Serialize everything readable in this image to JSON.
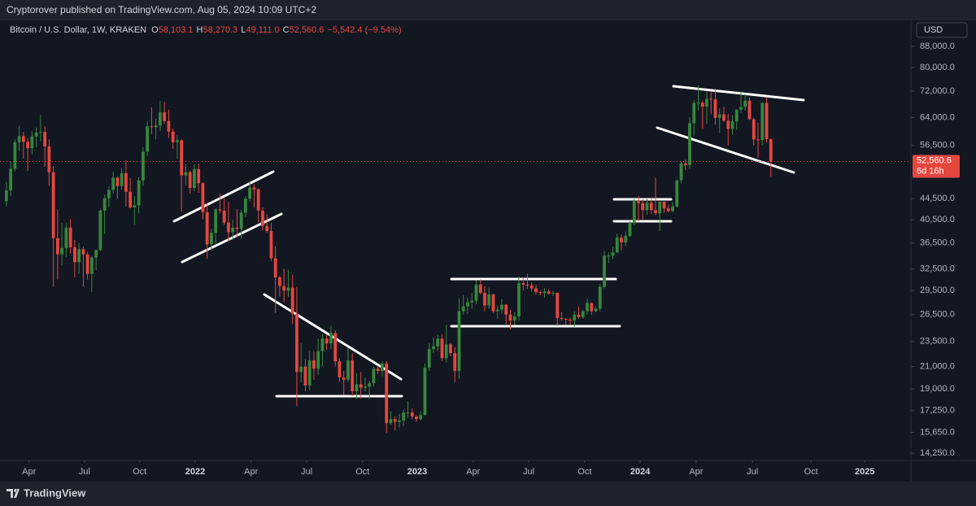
{
  "chart_data": {
    "type": "candlestick",
    "published": "Cryptorover published on TradingView.com, Aug 05, 2024 10:09 UTC+2",
    "title": "Bitcoin / U.S. Dollar, 1W, KRAKEN",
    "legend_fields": [
      {
        "key": "O",
        "text": "58,103.1"
      },
      {
        "key": "H",
        "text": "58,270.3"
      },
      {
        "key": "L",
        "text": "49,111.0"
      },
      {
        "key": "C",
        "text": "52,560.6"
      }
    ],
    "change_label": "−5,542.4 (−9.54%)",
    "currency": "USD",
    "last_price_label": "52,560.6",
    "countdown": "6d 16h",
    "brand": "TradingView",
    "up_color": "#36883c",
    "down_color": "#e5473f",
    "log_scale": true,
    "grid": false,
    "open": [
      44000,
      46200,
      50900,
      57300,
      58900,
      57400,
      55800,
      58800,
      59800,
      60000,
      56200,
      50100,
      37300,
      34700,
      35700,
      39100,
      35800,
      33500,
      35500,
      34700,
      31800,
      34200,
      35400,
      42200,
      44600,
      46300,
      48900,
      47100,
      49900,
      45900,
      42800,
      43200,
      48300,
      54900,
      61500,
      61300,
      61800,
      65500,
      63000,
      60100,
      57300,
      57800,
      49400,
      50100,
      46700,
      50800,
      47700,
      41900,
      36300,
      38200,
      42400,
      42200,
      40000,
      38300,
      39100,
      38900,
      41800,
      44500,
      46800,
      46400,
      42200,
      39400,
      38500,
      34100,
      31300,
      30100,
      29500,
      29900,
      26600,
      20500,
      21000,
      19300,
      21600,
      20800,
      22500,
      23800,
      23300,
      24400,
      21500,
      20000,
      19800,
      21600,
      18800,
      19400,
      19100,
      19200,
      19500,
      20800,
      20600,
      21300,
      16300,
      16600,
      16400,
      16500,
      17100,
      17100,
      16800,
      16600,
      16900,
      20900,
      22700,
      23000,
      23800,
      21800,
      23200,
      22300,
      20600,
      26900,
      27500,
      28000,
      28200,
      30300,
      29200,
      27600,
      29000,
      26900,
      27100,
      27700,
      26500,
      25800,
      26300,
      30500,
      30300,
      30200,
      29800,
      29300,
      29200,
      29400,
      29100,
      29200,
      26100,
      26000,
      25900,
      25800,
      26500,
      26200,
      26900,
      27900,
      26900,
      27200,
      30000,
      34500,
      34500,
      35000,
      37400,
      36600,
      37700,
      39900,
      44000,
      43600,
      42300,
      43700,
      42300,
      41700,
      43900,
      42600,
      42100,
      43000,
      48300,
      52100,
      51700,
      62400,
      68300,
      68400,
      67200,
      69600,
      69400,
      63900,
      64900,
      63100,
      60800,
      62900,
      66300,
      67100,
      69000,
      63500,
      58000,
      57900,
      68300,
      58103.1
    ],
    "high": [
      48000,
      52600,
      58000,
      61700,
      60000,
      58400,
      60200,
      61200,
      64800,
      61500,
      58000,
      51500,
      42400,
      40000,
      39900,
      40600,
      37000,
      36500,
      35900,
      35000,
      34500,
      35400,
      42400,
      45300,
      46900,
      50200,
      49200,
      51000,
      52900,
      48800,
      45000,
      49000,
      56000,
      62900,
      67000,
      63700,
      69000,
      68600,
      66300,
      60900,
      59100,
      58100,
      51900,
      50500,
      51900,
      52000,
      47900,
      43500,
      38900,
      42700,
      45500,
      44600,
      43900,
      40500,
      42500,
      42300,
      45000,
      48200,
      47500,
      46600,
      42800,
      41500,
      40000,
      36000,
      31500,
      32500,
      32400,
      31700,
      30000,
      23300,
      21700,
      22500,
      22500,
      23800,
      24300,
      24200,
      25200,
      24700,
      21800,
      20600,
      22800,
      22300,
      20400,
      20500,
      20000,
      19700,
      21000,
      21100,
      21500,
      21500,
      17200,
      16800,
      17000,
      17300,
      18000,
      17400,
      16900,
      17200,
      21300,
      23300,
      23900,
      24200,
      24300,
      25300,
      23300,
      22900,
      28500,
      28900,
      28600,
      29200,
      30900,
      31000,
      30100,
      29900,
      29100,
      27600,
      28400,
      27800,
      27100,
      26800,
      31400,
      31200,
      31800,
      30600,
      30300,
      29500,
      29800,
      29700,
      29500,
      29300,
      26800,
      26100,
      26200,
      26900,
      27500,
      27100,
      28500,
      28000,
      27500,
      30400,
      35200,
      35000,
      35900,
      38000,
      37900,
      38400,
      40300,
      44500,
      45000,
      44400,
      44500,
      44800,
      48900,
      43900,
      44000,
      43300,
      43800,
      48500,
      52600,
      53000,
      64000,
      69200,
      73800,
      68900,
      71800,
      71700,
      72800,
      66700,
      67200,
      65000,
      64700,
      66400,
      71900,
      71000,
      70000,
      64000,
      62500,
      68500,
      70000,
      58270.3
    ],
    "low": [
      43000,
      45000,
      50300,
      55000,
      53300,
      50400,
      54200,
      56000,
      57500,
      51300,
      47100,
      30000,
      31000,
      33000,
      34300,
      34800,
      31300,
      31800,
      30000,
      31000,
      29300,
      32300,
      35200,
      38000,
      42800,
      45500,
      44500,
      46300,
      43000,
      42600,
      39600,
      41700,
      47100,
      53900,
      59500,
      58000,
      60200,
      62300,
      58400,
      55600,
      53200,
      42000,
      47300,
      45500,
      46000,
      45700,
      40600,
      34000,
      35400,
      36300,
      41700,
      39600,
      36800,
      37000,
      37500,
      37200,
      41000,
      44000,
      42800,
      40000,
      38600,
      38200,
      33700,
      26700,
      28700,
      28000,
      28700,
      25400,
      17600,
      19600,
      18800,
      18900,
      19800,
      20200,
      21000,
      22600,
      22700,
      21000,
      19600,
      18500,
      19600,
      18400,
      18200,
      18200,
      18800,
      18200,
      19200,
      20300,
      20100,
      15600,
      16200,
      15800,
      16000,
      16100,
      16700,
      16600,
      16400,
      16500,
      16900,
      20600,
      22300,
      22500,
      21500,
      21400,
      22000,
      19600,
      19900,
      26500,
      26600,
      27200,
      27800,
      29000,
      26900,
      27200,
      26700,
      26000,
      26600,
      25400,
      24800,
      25300,
      25800,
      29500,
      29700,
      29400,
      29000,
      28900,
      28600,
      29000,
      28800,
      25200,
      25800,
      25300,
      25300,
      25100,
      26000,
      26000,
      26500,
      26500,
      26800,
      26900,
      29800,
      33400,
      34000,
      34900,
      35300,
      36000,
      37500,
      39500,
      40200,
      40600,
      41400,
      41500,
      41400,
      38500,
      41800,
      41900,
      41900,
      42800,
      47700,
      50600,
      50900,
      59000,
      66000,
      60800,
      62200,
      65000,
      62000,
      59700,
      62700,
      56500,
      59200,
      60600,
      65400,
      66000,
      63200,
      56500,
      53500,
      56600,
      57300,
      49111.0
    ],
    "close": [
      46200,
      50900,
      57300,
      58900,
      57400,
      55800,
      58800,
      59800,
      60000,
      56200,
      50100,
      37300,
      34700,
      35700,
      39100,
      35800,
      33500,
      35500,
      34700,
      31800,
      34200,
      35400,
      42200,
      44600,
      46300,
      48900,
      47100,
      49900,
      45900,
      42800,
      43200,
      48300,
      54900,
      61500,
      61300,
      61800,
      65500,
      63000,
      60100,
      57300,
      57800,
      49400,
      50100,
      46700,
      50800,
      47700,
      41900,
      36300,
      38200,
      42400,
      42200,
      40000,
      38300,
      39100,
      38900,
      41800,
      44500,
      46800,
      46400,
      42200,
      39400,
      38500,
      34100,
      31300,
      30100,
      29500,
      29900,
      26600,
      20500,
      21000,
      19300,
      21600,
      20800,
      22500,
      23800,
      23300,
      24400,
      21500,
      20000,
      19800,
      21600,
      18800,
      19400,
      19100,
      19200,
      19500,
      20800,
      20600,
      21300,
      16300,
      16600,
      16400,
      16500,
      17100,
      17100,
      16800,
      16600,
      16900,
      20900,
      22700,
      23000,
      23800,
      21800,
      23200,
      22300,
      20600,
      26900,
      27500,
      28000,
      28200,
      30300,
      29200,
      27600,
      29000,
      26900,
      27100,
      27700,
      26500,
      25800,
      26300,
      30500,
      30300,
      30200,
      29800,
      29300,
      29200,
      29400,
      29100,
      29200,
      26100,
      26000,
      25900,
      25800,
      26500,
      26200,
      26900,
      27900,
      26900,
      27200,
      30000,
      34500,
      34500,
      35000,
      37400,
      36600,
      37700,
      39900,
      44000,
      43600,
      42300,
      43700,
      42300,
      41700,
      43900,
      42600,
      42100,
      43000,
      48300,
      52100,
      51700,
      62400,
      68300,
      68400,
      67200,
      69600,
      69400,
      63900,
      64900,
      63100,
      60800,
      62900,
      66300,
      67100,
      69000,
      63500,
      58000,
      57900,
      68300,
      58103.0,
      52560.6
    ],
    "xlim": [
      -1.5,
      211.8
    ],
    "xticks": [
      {
        "value": 5.3,
        "label": "Apr"
      },
      {
        "value": 18.3,
        "label": "Jul"
      },
      {
        "value": 31.2,
        "label": "Oct"
      },
      {
        "value": 44.2,
        "label": "2022"
      },
      {
        "value": 57.3,
        "label": "Apr"
      },
      {
        "value": 70.3,
        "label": "Jul"
      },
      {
        "value": 83.4,
        "label": "Oct"
      },
      {
        "value": 96.2,
        "label": "2023"
      },
      {
        "value": 109.3,
        "label": "Apr"
      },
      {
        "value": 122.3,
        "label": "Jul"
      },
      {
        "value": 135.4,
        "label": "Oct"
      },
      {
        "value": 148.4,
        "label": "2024"
      },
      {
        "value": 161.5,
        "label": "Apr"
      },
      {
        "value": 174.7,
        "label": "Jul"
      },
      {
        "value": 188.4,
        "label": "Oct"
      },
      {
        "value": 201.0,
        "label": "2025"
      }
    ],
    "ylim": [
      13800,
      99200
    ],
    "yticks": [
      {
        "value": 88000,
        "label": "88,000.0"
      },
      {
        "value": 80000,
        "label": "80,000.0"
      },
      {
        "value": 72000,
        "label": "72,000.0"
      },
      {
        "value": 64000,
        "label": "64,000.0"
      },
      {
        "value": 56500,
        "label": "56,500.0"
      },
      {
        "value": 44500,
        "label": "44,500.0"
      },
      {
        "value": 40500,
        "label": "40,500.0"
      },
      {
        "value": 36500,
        "label": "36,500.0"
      },
      {
        "value": 32500,
        "label": "32,500.0"
      },
      {
        "value": 29500,
        "label": "29,500.0"
      },
      {
        "value": 26500,
        "label": "26,500.0"
      },
      {
        "value": 23500,
        "label": "23,500.0"
      },
      {
        "value": 21000,
        "label": "21,000.0"
      },
      {
        "value": 19000,
        "label": "19,000.0"
      },
      {
        "value": 17250,
        "label": "17,250.0"
      },
      {
        "value": 15650,
        "label": "15,650.0"
      },
      {
        "value": 14250,
        "label": "14,250.0"
      }
    ]
  }
}
